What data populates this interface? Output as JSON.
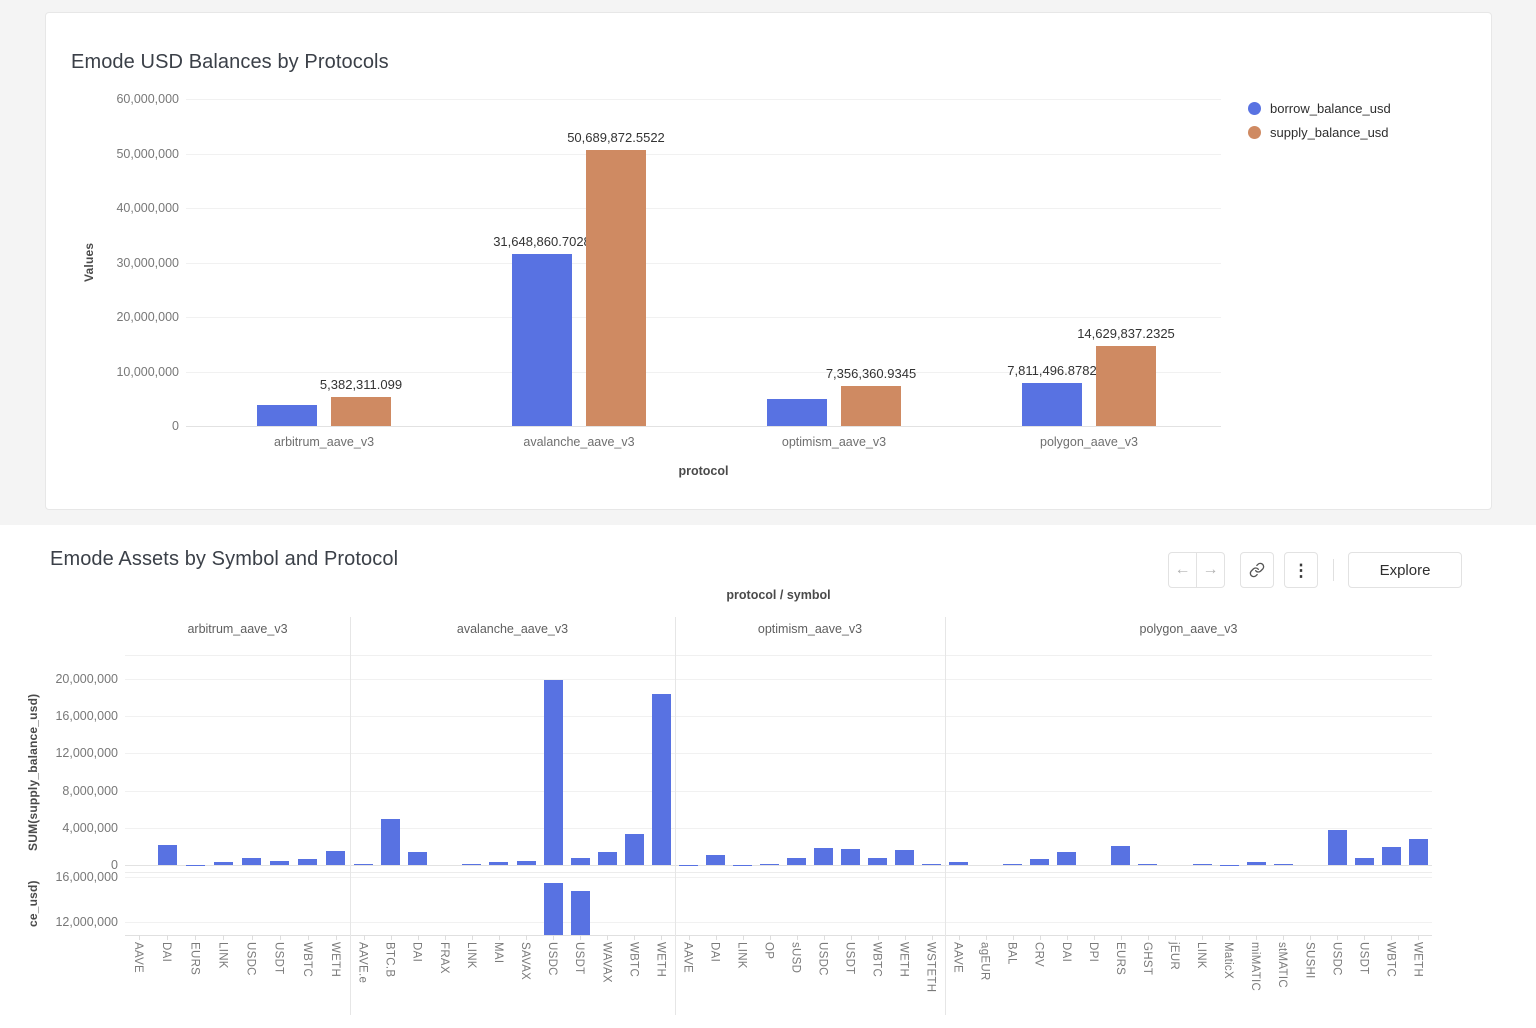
{
  "app": {
    "page_bg": "#f4f4f4",
    "card_bg": "#ffffff"
  },
  "colors": {
    "borrow_blue": "#5872e2",
    "supply_orange": "#cf8a62",
    "gridline": "#f1f1f1",
    "zero_line": "#e2e2e2",
    "facet_boundary": "#e6e6e6"
  },
  "toolbar": {
    "explore_label": "Explore",
    "icons": [
      "arrow-left",
      "arrow-right",
      "link",
      "kebab-menu"
    ]
  },
  "chart_data": [
    {
      "type": "bar",
      "title": "Emode USD Balances by Protocols",
      "xlabel": "protocol",
      "ylabel": "Values",
      "ylim": [
        0,
        60000000
      ],
      "grid": true,
      "legend_position": "right",
      "ytick_values": [
        60000000,
        50000000,
        40000000,
        30000000,
        20000000,
        10000000,
        0
      ],
      "ytick_labels": [
        "60,000,000",
        "50,000,000",
        "40,000,000",
        "30,000,000",
        "20,000,000",
        "10,000,000",
        "0"
      ],
      "categories": [
        "arbitrum_aave_v3",
        "avalanche_aave_v3",
        "optimism_aave_v3",
        "polygon_aave_v3"
      ],
      "series": [
        {
          "name": "borrow_balance_usd",
          "color": "#5872e2",
          "values": [
            3830000,
            31648860.7028,
            5020000,
            7811496.8782
          ],
          "value_labels": [
            "",
            "31,648,860.7028",
            "",
            "7,811,496.8782"
          ]
        },
        {
          "name": "supply_balance_usd",
          "color": "#cf8a62",
          "values": [
            5382311.099,
            50689872.5522,
            7356360.9345,
            14629837.2325
          ],
          "value_labels": [
            "5,382,311.099",
            "50,689,872.5522",
            "7,356,360.9345",
            "14,629,837.2325"
          ]
        }
      ]
    },
    {
      "type": "bar",
      "title": "Emode Assets by Symbol and Protocol",
      "facet_axis_title": "protocol / symbol",
      "rows": [
        {
          "ylabel": "SUM(supply_balance_usd)",
          "ylim": [
            0,
            20000000
          ],
          "ytick_values": [
            20000000,
            16000000,
            12000000,
            8000000,
            4000000,
            0
          ],
          "ytick_labels": [
            "20,000,000",
            "16,000,000",
            "12,000,000",
            "8,000,000",
            "4,000,000",
            "0"
          ]
        },
        {
          "ylabel_visible": "ce_usd)",
          "ylim_visible": [
            10900000,
            16450000
          ],
          "ytick_values": [
            16000000,
            12000000
          ],
          "ytick_labels": [
            "16,000,000",
            "12,000,000"
          ],
          "note": "panel cut off at bottom edge of screenshot"
        }
      ],
      "facets": [
        {
          "protocol": "arbitrum_aave_v3",
          "symbols": [
            "AAVE",
            "DAI",
            "EURS",
            "LINK",
            "USDC",
            "USDT",
            "WBTC",
            "WETH"
          ],
          "supply_balance_usd": [
            40000,
            2100000,
            50000,
            280000,
            780000,
            480000,
            620000,
            1500000
          ],
          "borrow_balance_usd_visible": [
            null,
            null,
            null,
            null,
            null,
            null,
            null,
            null
          ]
        },
        {
          "protocol": "avalanche_aave_v3",
          "symbols": [
            "AAVE.e",
            "BTC.B",
            "DAI",
            "FRAX",
            "LINK",
            "MAI",
            "SAVAX",
            "USDC",
            "USDT",
            "WAVAX",
            "WBTC",
            "WETH"
          ],
          "supply_balance_usd": [
            60000,
            5000000,
            1400000,
            40000,
            120000,
            350000,
            480000,
            19900000,
            800000,
            1400000,
            3300000,
            18400000
          ],
          "borrow_balance_usd_visible": [
            null,
            null,
            null,
            null,
            null,
            null,
            null,
            15500000,
            14800000,
            null,
            null,
            null
          ]
        },
        {
          "protocol": "optimism_aave_v3",
          "symbols": [
            "AAVE",
            "DAI",
            "LINK",
            "OP",
            "sUSD",
            "USDC",
            "USDT",
            "WBTC",
            "WETH",
            "WSTETH"
          ],
          "supply_balance_usd": [
            50000,
            1050000,
            50000,
            110000,
            750000,
            1850000,
            1750000,
            700000,
            1600000,
            140000
          ],
          "borrow_balance_usd_visible": [
            null,
            null,
            null,
            null,
            null,
            null,
            null,
            null,
            null,
            null
          ]
        },
        {
          "protocol": "polygon_aave_v3",
          "symbols": [
            "AAVE",
            "agEUR",
            "BAL",
            "CRV",
            "DAI",
            "DPI",
            "EURS",
            "GHST",
            "jEUR",
            "LINK",
            "MaticX",
            "miMATIC",
            "stMATIC",
            "SUSHI",
            "USDC",
            "USDT",
            "WBTC",
            "WETH"
          ],
          "supply_balance_usd": [
            350000,
            20000,
            120000,
            600000,
            1350000,
            20000,
            2000000,
            100000,
            20000,
            120000,
            50000,
            300000,
            150000,
            30000,
            3800000,
            700000,
            1900000,
            2800000
          ],
          "borrow_balance_usd_visible": [
            null,
            null,
            null,
            null,
            null,
            null,
            null,
            null,
            null,
            null,
            null,
            null,
            null,
            null,
            null,
            null,
            null,
            null
          ]
        }
      ]
    }
  ]
}
